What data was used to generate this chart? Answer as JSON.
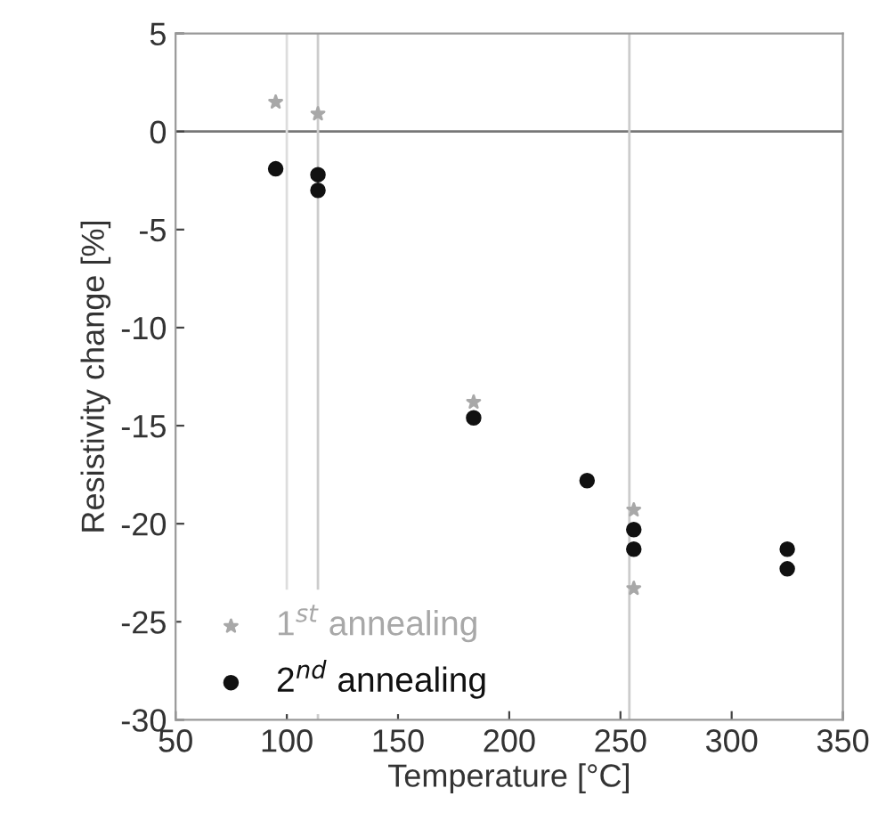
{
  "chart_data": {
    "type": "scatter",
    "xlabel": "Temperature [°C]",
    "ylabel": "Resistivity change [%]",
    "xlim": [
      50,
      350
    ],
    "xticks": [
      50,
      100,
      150,
      200,
      250,
      300,
      350
    ],
    "ylim": [
      -30,
      5
    ],
    "yticks": [
      5,
      0,
      -5,
      -10,
      -15,
      -20,
      -25,
      -30
    ],
    "series": [
      {
        "name": "1$^{st}$ annealing",
        "color": "#a8a8a8",
        "marker": "star",
        "x": [
          95,
          114,
          184,
          256,
          256
        ],
        "values": [
          1.5,
          0.9,
          -13.8,
          -19.3,
          -23.3
        ]
      },
      {
        "name": "2$^{nd}$ annealing",
        "color": "#111111",
        "marker": "circle",
        "x": [
          95,
          114,
          114,
          184,
          235,
          256,
          256,
          325,
          325
        ],
        "values": [
          -1.9,
          -2.2,
          -3.0,
          -14.6,
          -17.8,
          -20.3,
          -21.3,
          -21.3,
          -22.3
        ]
      }
    ],
    "ref_lines": [
      {
        "axis": "y",
        "value": 0,
        "color": "#777777"
      },
      {
        "axis": "x",
        "value": 100,
        "color": "#dddddd"
      },
      {
        "axis": "x",
        "value": 114,
        "color": "#cccccc"
      },
      {
        "axis": "x",
        "value": 254,
        "color": "#cccccc"
      }
    ],
    "legend": "bottom left",
    "grid": false
  }
}
